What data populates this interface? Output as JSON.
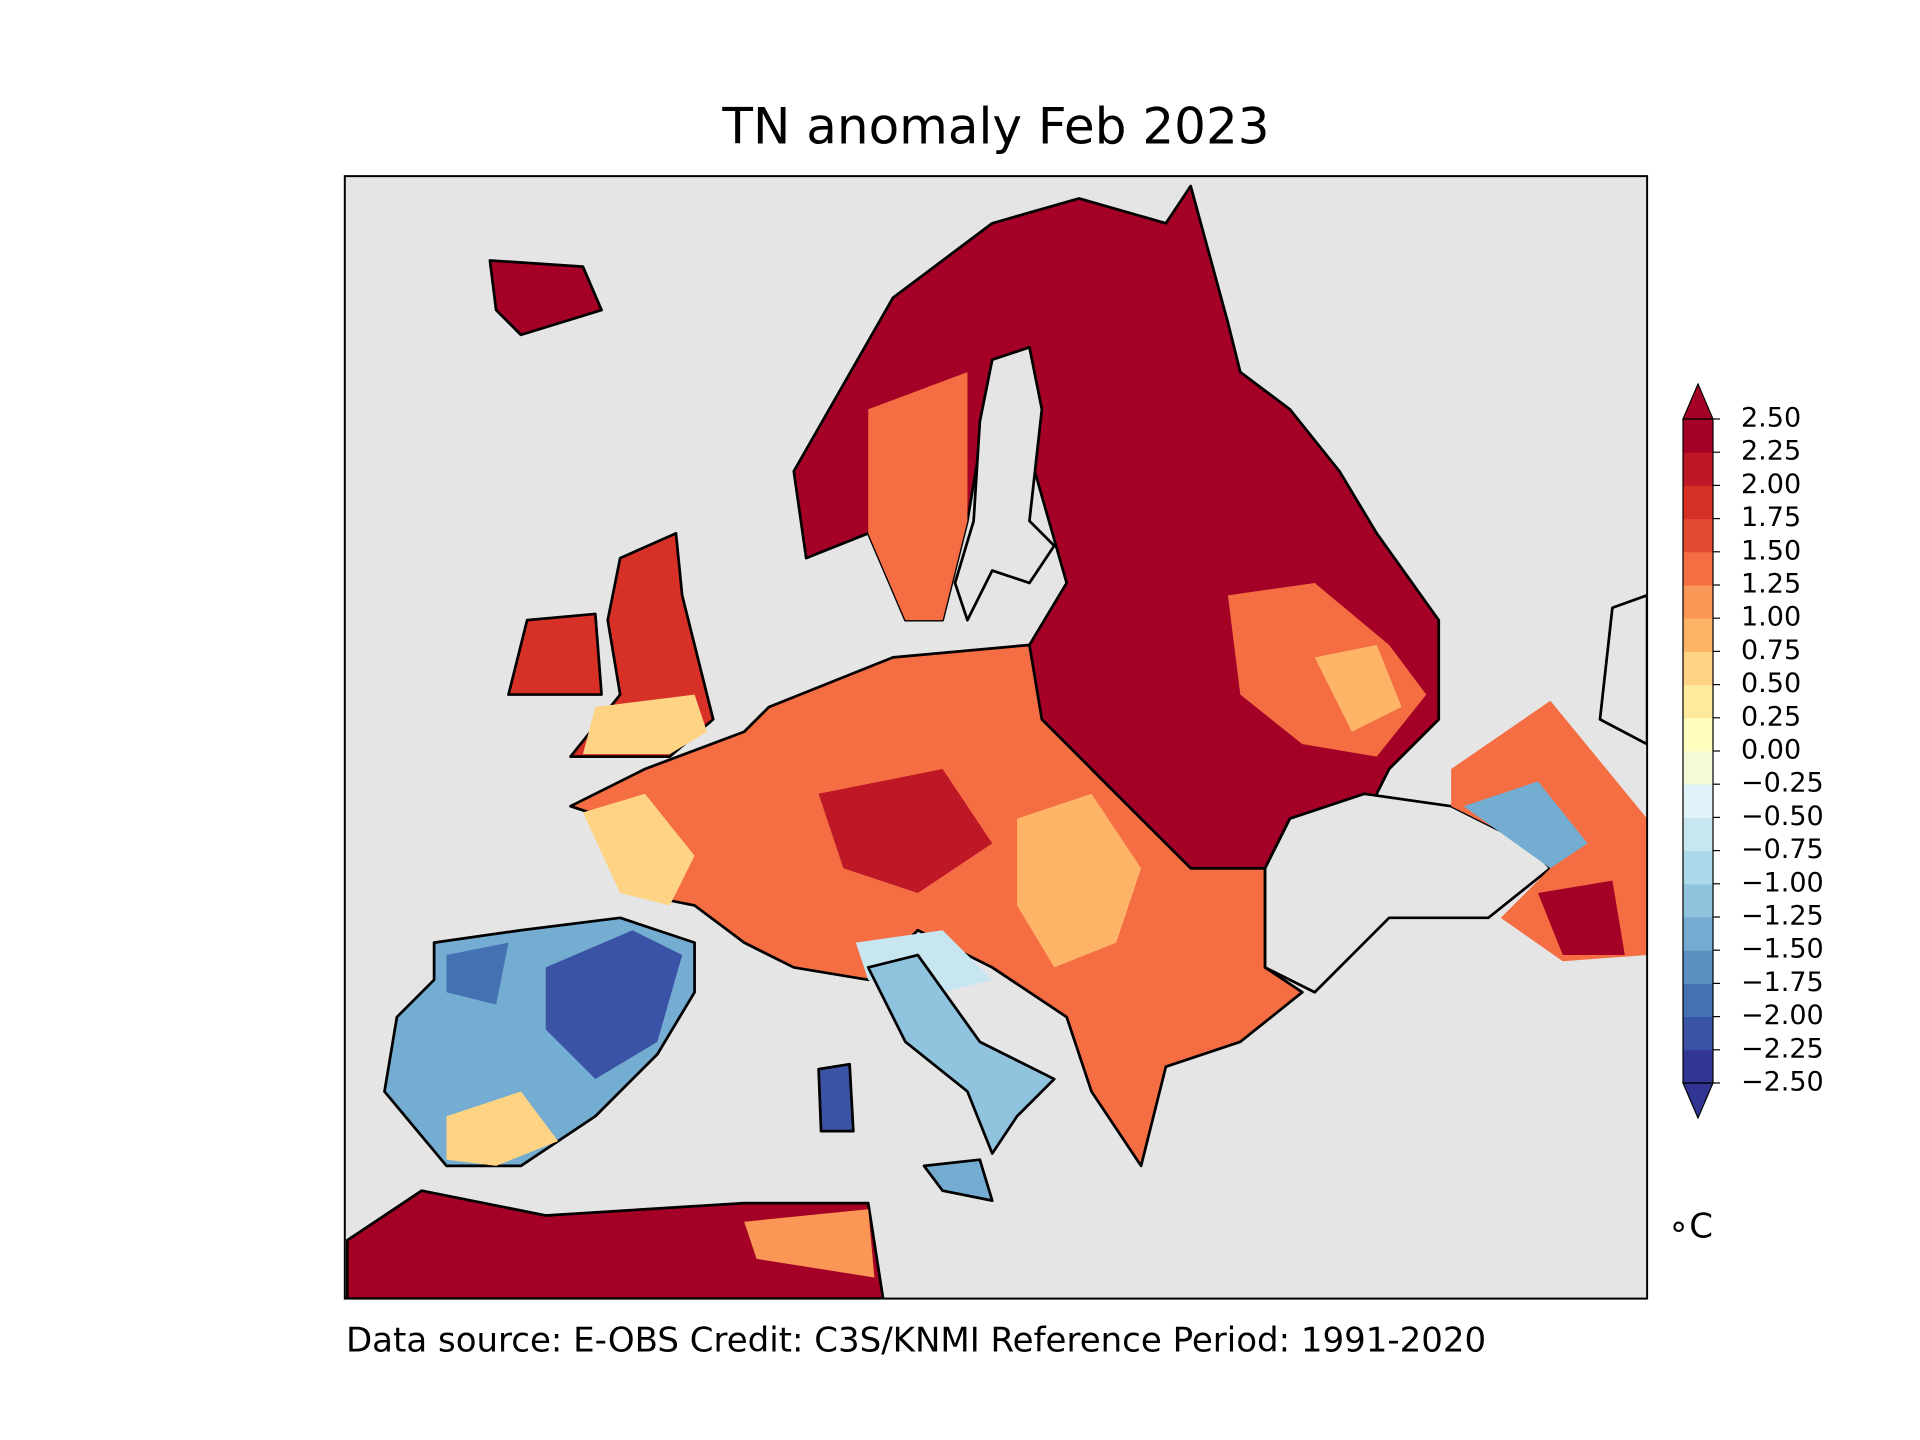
{
  "title": "TN anomaly Feb 2023",
  "footer": "Data source: E-OBS  Credit: C3S/KNMI  Reference Period: 1991-2020",
  "colorbar": {
    "lim": [
      -2.5,
      2.5
    ],
    "ticks": [
      {
        "value": -2.5,
        "label": "−2.50"
      },
      {
        "value": -2.25,
        "label": "−2.25"
      },
      {
        "value": -2.0,
        "label": "−2.00"
      },
      {
        "value": -1.75,
        "label": "−1.75"
      },
      {
        "value": -1.5,
        "label": "−1.50"
      },
      {
        "value": -1.25,
        "label": "−1.25"
      },
      {
        "value": -1.0,
        "label": "−1.00"
      },
      {
        "value": -0.75,
        "label": "−0.75"
      },
      {
        "value": -0.5,
        "label": "−0.50"
      },
      {
        "value": -0.25,
        "label": "−0.25"
      },
      {
        "value": 0,
        "label": "0.00"
      },
      {
        "value": 0.25,
        "label": "0.25"
      },
      {
        "value": 0.5,
        "label": "0.50"
      },
      {
        "value": 0.75,
        "label": "0.75"
      },
      {
        "value": 1.0,
        "label": "1.00"
      },
      {
        "value": 1.25,
        "label": "1.25"
      },
      {
        "value": 1.5,
        "label": "1.50"
      },
      {
        "value": 1.75,
        "label": "1.75"
      },
      {
        "value": 2.0,
        "label": "2.00"
      },
      {
        "value": 2.25,
        "label": "2.25"
      },
      {
        "value": 2.5,
        "label": "2.50"
      }
    ],
    "colors": [
      "#313695",
      "#3a53a4",
      "#4471b2",
      "#5b8fc2",
      "#74add1",
      "#90c3dd",
      "#abd9e9",
      "#c7e6f0",
      "#e0f3f8",
      "#f2fad6",
      "#fffebe",
      "#fee99d",
      "#fed383",
      "#fdb466",
      "#fa9656",
      "#f46d43",
      "#e34a33",
      "#d73027",
      "#be1827",
      "#a50026"
    ],
    "under_color": "#313695",
    "over_color": "#a50026",
    "unit": "∘C"
  }
}
